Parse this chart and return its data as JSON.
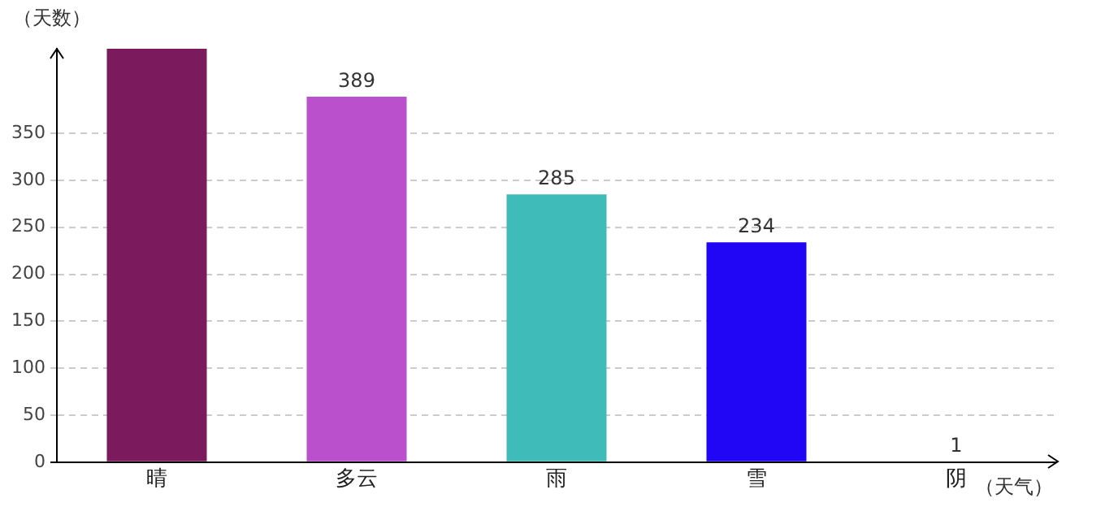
{
  "chart_data": {
    "type": "bar",
    "xlabel": "（天气）",
    "ylabel": "（天数）",
    "categories": [
      "晴",
      "多云",
      "雨",
      "雪",
      "阴"
    ],
    "values": [
      440,
      389,
      285,
      234,
      1
    ],
    "colors": [
      "#7b1a5c",
      "#ba50cc",
      "#3fbbb9",
      "#2006f5",
      "#e0a030"
    ],
    "value_labels": [
      null,
      "389",
      "285",
      "234",
      "1"
    ],
    "ylim": [
      0,
      440
    ],
    "yticks": [
      0,
      50,
      100,
      150,
      200,
      250,
      300,
      350
    ],
    "grid": "y"
  }
}
